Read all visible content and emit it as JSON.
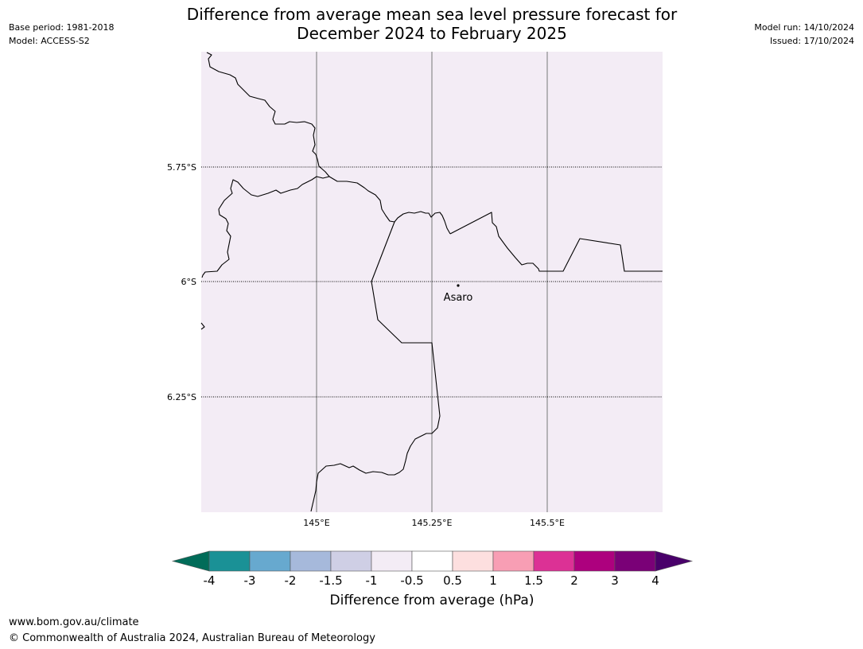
{
  "header": {
    "title_line1": "Difference from average mean sea level pressure forecast for",
    "title_line2": "December 2024 to February 2025",
    "base_period": "Base period: 1981-2018",
    "model": "Model: ACCESS-S2",
    "model_run": "Model run: 14/10/2024",
    "issued": "Issued: 17/10/2024"
  },
  "map": {
    "background_color": "#f3ecf5",
    "latitude_labels": [
      "5.75°S",
      "6°S",
      "6.25°S"
    ],
    "longitude_labels": [
      "145°E",
      "145.25°E",
      "145.5°E"
    ],
    "place": {
      "name": "Asaro"
    }
  },
  "colorbar": {
    "label": "Difference from average (hPa)",
    "tick_labels": [
      "-4",
      "-3",
      "-2",
      "-1.5",
      "-1",
      "-0.5",
      "0.5",
      "1",
      "1.5",
      "2",
      "3",
      "4"
    ],
    "colors": [
      "#1a9196",
      "#67a9cf",
      "#a6b9db",
      "#cfcfe5",
      "#f3ecf5",
      "#ffffff",
      "#fddfdf",
      "#f89eb4",
      "#dc3195",
      "#ad017e",
      "#7a0177"
    ],
    "under_color": "#016c59",
    "over_color": "#49006a"
  },
  "footer": {
    "url": "www.bom.gov.au/climate",
    "copyright": "© Commonwealth of Australia 2024, Australian Bureau of Meteorology"
  }
}
